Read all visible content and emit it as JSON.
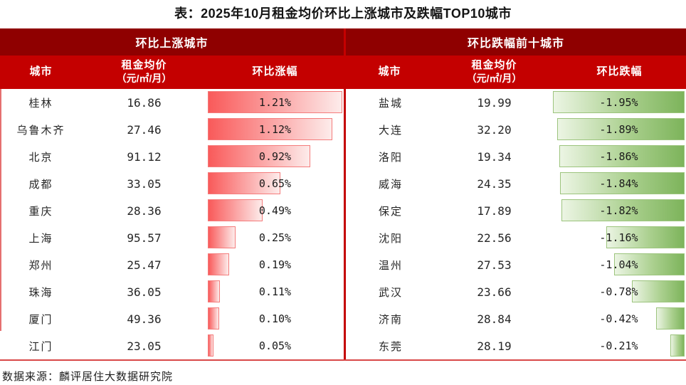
{
  "title": "表：2025年10月租金均价环比上涨城市及跌幅TOP10城市",
  "source": "数据来源：麟评居住大数据研究院",
  "colors": {
    "header_dark": "#8f0000",
    "header_red": "#c40000",
    "rise_bar_dark": "#f95a5a",
    "fall_bar_dark": "#7db45b"
  },
  "tables": {
    "rise": {
      "group_header": "环比上涨城市",
      "col_city": "城市",
      "col_price_line1": "租金均价",
      "col_price_line2": "（元/㎡/月）",
      "col_change": "环比涨幅",
      "max_abs_change": 1.21,
      "rows": [
        {
          "city": "桂林",
          "price": "16.86",
          "change_label": "1.21%",
          "change_value": 1.21
        },
        {
          "city": "乌鲁木齐",
          "price": "27.46",
          "change_label": "1.12%",
          "change_value": 1.12
        },
        {
          "city": "北京",
          "price": "91.12",
          "change_label": "0.92%",
          "change_value": 0.92
        },
        {
          "city": "成都",
          "price": "33.05",
          "change_label": "0.65%",
          "change_value": 0.65
        },
        {
          "city": "重庆",
          "price": "28.36",
          "change_label": "0.49%",
          "change_value": 0.49
        },
        {
          "city": "上海",
          "price": "95.57",
          "change_label": "0.25%",
          "change_value": 0.25
        },
        {
          "city": "郑州",
          "price": "25.47",
          "change_label": "0.19%",
          "change_value": 0.19
        },
        {
          "city": "珠海",
          "price": "36.05",
          "change_label": "0.11%",
          "change_value": 0.11
        },
        {
          "city": "厦门",
          "price": "49.36",
          "change_label": "0.10%",
          "change_value": 0.1
        },
        {
          "city": "江门",
          "price": "23.05",
          "change_label": "0.05%",
          "change_value": 0.05
        }
      ]
    },
    "fall": {
      "group_header": "环比跌幅前十城市",
      "col_city": "城市",
      "col_price_line1": "租金均价",
      "col_price_line2": "（元/㎡/月）",
      "col_change": "环比跌幅",
      "max_abs_change": 1.95,
      "rows": [
        {
          "city": "盐城",
          "price": "19.99",
          "change_label": "-1.95%",
          "change_value": -1.95
        },
        {
          "city": "大连",
          "price": "32.20",
          "change_label": "-1.89%",
          "change_value": -1.89
        },
        {
          "city": "洛阳",
          "price": "19.34",
          "change_label": "-1.86%",
          "change_value": -1.86
        },
        {
          "city": "威海",
          "price": "24.35",
          "change_label": "-1.84%",
          "change_value": -1.84
        },
        {
          "city": "保定",
          "price": "17.89",
          "change_label": "-1.82%",
          "change_value": -1.82
        },
        {
          "city": "沈阳",
          "price": "22.56",
          "change_label": "-1.16%",
          "change_value": -1.16
        },
        {
          "city": "温州",
          "price": "27.53",
          "change_label": "-1.04%",
          "change_value": -1.04
        },
        {
          "city": "武汉",
          "price": "23.66",
          "change_label": "-0.78%",
          "change_value": -0.78
        },
        {
          "city": "济南",
          "price": "28.84",
          "change_label": "-0.42%",
          "change_value": -0.42
        },
        {
          "city": "东莞",
          "price": "28.19",
          "change_label": "-0.21%",
          "change_value": -0.21
        }
      ]
    }
  },
  "chart_data": [
    {
      "type": "bar",
      "title": "环比上涨城市",
      "categories": [
        "桂林",
        "乌鲁木齐",
        "北京",
        "成都",
        "重庆",
        "上海",
        "郑州",
        "珠海",
        "厦门",
        "江门"
      ],
      "series": [
        {
          "name": "租金均价（元/㎡/月）",
          "values": [
            16.86,
            27.46,
            91.12,
            33.05,
            28.36,
            95.57,
            25.47,
            36.05,
            49.36,
            23.05
          ]
        },
        {
          "name": "环比涨幅(%)",
          "values": [
            1.21,
            1.12,
            0.92,
            0.65,
            0.49,
            0.25,
            0.19,
            0.11,
            0.1,
            0.05
          ]
        }
      ],
      "xlabel": "",
      "ylabel": "环比涨幅",
      "xlim": [
        0,
        1.21
      ],
      "orientation": "horizontal",
      "grid": false
    },
    {
      "type": "bar",
      "title": "环比跌幅前十城市",
      "categories": [
        "盐城",
        "大连",
        "洛阳",
        "威海",
        "保定",
        "沈阳",
        "温州",
        "武汉",
        "济南",
        "东莞"
      ],
      "series": [
        {
          "name": "租金均价（元/㎡/月）",
          "values": [
            19.99,
            32.2,
            19.34,
            24.35,
            17.89,
            22.56,
            27.53,
            23.66,
            28.84,
            28.19
          ]
        },
        {
          "name": "环比跌幅(%)",
          "values": [
            -1.95,
            -1.89,
            -1.86,
            -1.84,
            -1.82,
            -1.16,
            -1.04,
            -0.78,
            -0.42,
            -0.21
          ]
        }
      ],
      "xlabel": "",
      "ylabel": "环比跌幅",
      "xlim": [
        -1.95,
        0
      ],
      "orientation": "horizontal",
      "grid": false
    }
  ]
}
